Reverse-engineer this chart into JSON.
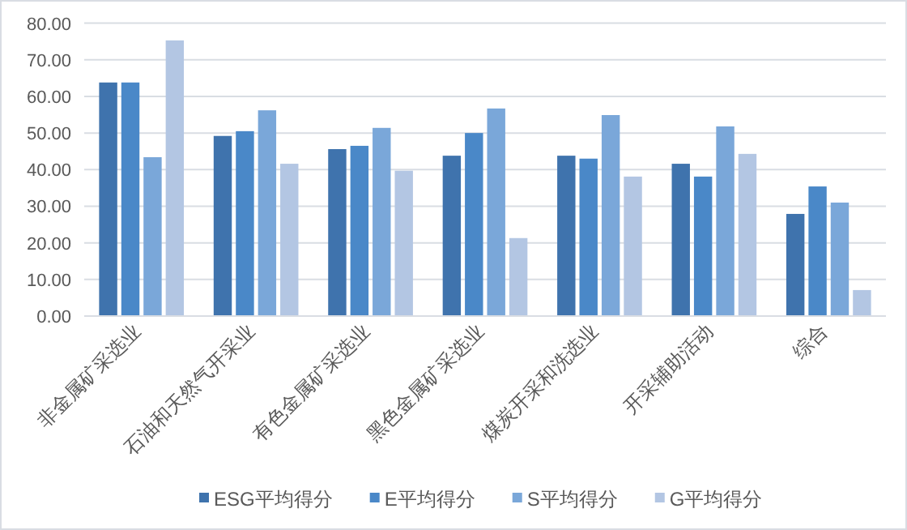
{
  "chart_data": {
    "type": "bar",
    "categories": [
      "非金属矿采选业",
      "石油和天然气开采业",
      "有色金属矿采选业",
      "黑色金属矿采选业",
      "煤炭开采和洗选业",
      "开采辅助活动",
      "综合"
    ],
    "series": [
      {
        "name": "ESG平均得分",
        "color": "#3f73ad",
        "values": [
          63.8,
          49.2,
          45.6,
          43.8,
          43.8,
          41.6,
          27.9
        ]
      },
      {
        "name": "E平均得分",
        "color": "#4a88c8",
        "values": [
          63.8,
          50.5,
          46.5,
          50.0,
          43.0,
          38.1,
          35.4
        ]
      },
      {
        "name": "S平均得分",
        "color": "#7aa7d9",
        "values": [
          43.4,
          56.2,
          51.4,
          56.7,
          54.9,
          51.8,
          31.0
        ]
      },
      {
        "name": "G平均得分",
        "color": "#b3c6e3",
        "values": [
          75.3,
          41.6,
          39.7,
          21.3,
          38.1,
          44.3,
          7.1
        ]
      }
    ],
    "ylim": [
      0,
      80
    ],
    "yticks": [
      {
        "value": 0,
        "label": "0.00"
      },
      {
        "value": 10,
        "label": "10.00"
      },
      {
        "value": 20,
        "label": "20.00"
      },
      {
        "value": 30,
        "label": "30.00"
      },
      {
        "value": 40,
        "label": "40.00"
      },
      {
        "value": 50,
        "label": "50.00"
      },
      {
        "value": 60,
        "label": "60.00"
      },
      {
        "value": 70,
        "label": "70.00"
      },
      {
        "value": 80,
        "label": "80.00"
      }
    ],
    "grid": "y",
    "legend": "bottom"
  }
}
